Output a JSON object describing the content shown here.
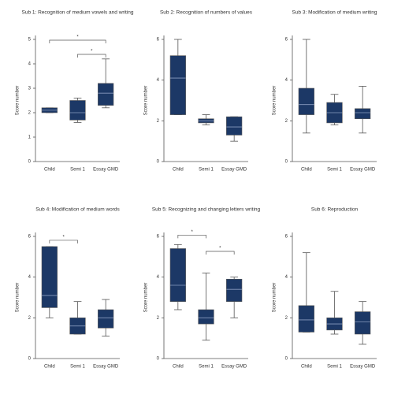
{
  "chart_data": [
    {
      "type": "box",
      "title": "Sub 1: Recognition of medium vowels and writing",
      "y_label": "Score number",
      "categories": [
        "Child",
        "Semi 1",
        "Essay GMD"
      ],
      "color": "#1c3866",
      "min": [
        2.0,
        1.6,
        2.2
      ],
      "q1": [
        2.0,
        1.7,
        2.3
      ],
      "median": [
        2.1,
        2.0,
        2.8
      ],
      "q3": [
        2.2,
        2.5,
        3.2
      ],
      "max": [
        2.2,
        2.6,
        4.2
      ],
      "ylim": [
        0,
        5
      ],
      "yticks": [
        0,
        1,
        2,
        3,
        4,
        5
      ],
      "annotations": [
        {
          "text": "*",
          "from": 0,
          "to": 2
        },
        {
          "text": "*",
          "from": 1,
          "to": 2
        }
      ]
    },
    {
      "type": "box",
      "title": "Sub 2: Recognition of numbers of values",
      "y_label": "Score number",
      "categories": [
        "Child",
        "Semi 1",
        "Essay GMD"
      ],
      "color": "#1c3866",
      "min": [
        2.3,
        1.8,
        1.0
      ],
      "q1": [
        2.3,
        1.9,
        1.3
      ],
      "median": [
        4.1,
        2.0,
        1.7
      ],
      "q3": [
        5.2,
        2.1,
        2.2
      ],
      "max": [
        6.0,
        2.3,
        2.2
      ],
      "ylim": [
        0,
        6
      ],
      "yticks": [
        0,
        2,
        4,
        6
      ],
      "annotations": []
    },
    {
      "type": "box",
      "title": "Sub 3: Modification of medium writing",
      "y_label": "Score number",
      "categories": [
        "Child",
        "Semi 1",
        "Essay GMD"
      ],
      "color": "#1c3866",
      "min": [
        1.4,
        1.8,
        1.4
      ],
      "q1": [
        2.3,
        1.9,
        2.1
      ],
      "median": [
        2.8,
        2.4,
        2.4
      ],
      "q3": [
        3.6,
        2.9,
        2.6
      ],
      "max": [
        6.0,
        3.3,
        3.7
      ],
      "ylim": [
        0,
        6
      ],
      "yticks": [
        0,
        2,
        4,
        6
      ],
      "annotations": []
    },
    {
      "type": "box",
      "title": "Sub 4: Modification of medium words",
      "y_label": "Score number",
      "categories": [
        "Child",
        "Semi 1",
        "Essay GMD"
      ],
      "color": "#1c3866",
      "min": [
        2.0,
        1.2,
        1.1
      ],
      "q1": [
        2.5,
        1.2,
        1.5
      ],
      "median": [
        3.1,
        1.6,
        2.0
      ],
      "q3": [
        5.5,
        2.0,
        2.4
      ],
      "max": [
        5.5,
        2.8,
        2.9
      ],
      "ylim": [
        0,
        6
      ],
      "yticks": [
        0,
        2,
        4,
        6
      ],
      "annotations": [
        {
          "text": "*",
          "from": 0,
          "to": 1
        }
      ]
    },
    {
      "type": "box",
      "title": "Sub 5: Recognizing and changing letters writing",
      "y_label": "Score number",
      "categories": [
        "Child",
        "Semi 1",
        "Essay GMD"
      ],
      "color": "#1c3866",
      "min": [
        2.4,
        0.9,
        2.0
      ],
      "q1": [
        2.8,
        1.7,
        2.8
      ],
      "median": [
        3.6,
        2.0,
        3.4
      ],
      "q3": [
        5.4,
        2.4,
        3.9
      ],
      "max": [
        5.6,
        4.2,
        4.0
      ],
      "ylim": [
        0,
        6
      ],
      "yticks": [
        0,
        2,
        4,
        6
      ],
      "annotations": [
        {
          "text": "*",
          "from": 0,
          "to": 1
        },
        {
          "text": "*",
          "from": 1,
          "to": 2
        }
      ]
    },
    {
      "type": "box",
      "title": "Sub 6: Reproduction",
      "y_label": "Score number",
      "categories": [
        "Child",
        "Semi 1",
        "Essay GMD"
      ],
      "color": "#1c3866",
      "min": [
        1.3,
        1.2,
        0.7
      ],
      "q1": [
        1.3,
        1.4,
        1.2
      ],
      "median": [
        1.9,
        1.7,
        1.8
      ],
      "q3": [
        2.6,
        2.0,
        2.3
      ],
      "max": [
        5.2,
        3.3,
        2.8
      ],
      "ylim": [
        0,
        6
      ],
      "yticks": [
        0,
        2,
        4,
        6
      ],
      "annotations": []
    }
  ]
}
